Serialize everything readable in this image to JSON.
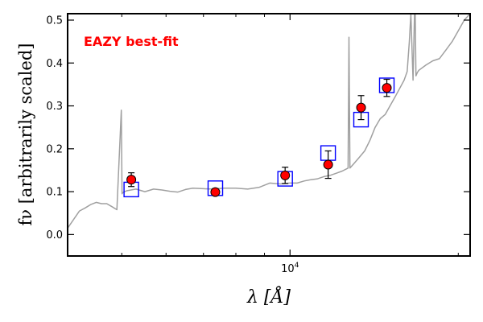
{
  "chart_data": {
    "type": "scatter",
    "title": "",
    "annotation": "EAZY best-fit",
    "xlabel": "λ [Å]",
    "ylabel": "fν [arbitrarily scaled]",
    "xscale": "log",
    "xlim": [
      4000,
      21000
    ],
    "ylim": [
      -0.05,
      0.515
    ],
    "grid": false,
    "y_ticks": [
      {
        "value": 0.0,
        "label": "0.0"
      },
      {
        "value": 0.1,
        "label": "0.1"
      },
      {
        "value": 0.2,
        "label": "0.2"
      },
      {
        "value": 0.3,
        "label": "0.3"
      },
      {
        "value": 0.4,
        "label": "0.4"
      },
      {
        "value": 0.5,
        "label": "0.5"
      }
    ],
    "x_major_ticks": [
      {
        "value": 10000,
        "label": "10^4"
      }
    ],
    "x_minor_ticks": [
      5000,
      6000,
      7000,
      8000,
      9000,
      20000
    ],
    "series": [
      {
        "kind": "template",
        "color": "#a0a0a0",
        "x": [
          4000,
          4100,
          4200,
          4300,
          4400,
          4500,
          4600,
          4700,
          4800,
          4900,
          4990,
          5005,
          5020,
          5100,
          5300,
          5500,
          5700,
          5900,
          6100,
          6300,
          6500,
          6700,
          7000,
          7300,
          7600,
          8000,
          8400,
          8800,
          9200,
          9600,
          10000,
          10300,
          10600,
          10900,
          11200,
          11500,
          11800,
          12100,
          12400,
          12700,
          12750,
          12800,
          13000,
          13300,
          13600,
          13900,
          14200,
          14500,
          14800,
          15100,
          15400,
          15700,
          16000,
          16200,
          16350,
          16450,
          16600,
          16700,
          16750,
          16800,
          16900,
          17000,
          17500,
          18000,
          18500,
          19000,
          19500,
          20000,
          20500,
          21000
        ],
        "y": [
          0.015,
          0.035,
          0.055,
          0.062,
          0.07,
          0.075,
          0.072,
          0.072,
          0.065,
          0.058,
          0.29,
          0.095,
          0.098,
          0.102,
          0.106,
          0.1,
          0.106,
          0.104,
          0.101,
          0.099,
          0.105,
          0.108,
          0.107,
          0.106,
          0.108,
          0.108,
          0.106,
          0.11,
          0.12,
          0.118,
          0.12,
          0.12,
          0.125,
          0.128,
          0.13,
          0.135,
          0.138,
          0.143,
          0.148,
          0.155,
          0.46,
          0.155,
          0.165,
          0.18,
          0.195,
          0.22,
          0.25,
          0.27,
          0.28,
          0.3,
          0.32,
          0.34,
          0.36,
          0.38,
          0.45,
          0.515,
          0.36,
          0.515,
          0.515,
          0.37,
          0.378,
          0.383,
          0.395,
          0.405,
          0.41,
          0.43,
          0.45,
          0.475,
          0.5,
          0.515
        ]
      },
      {
        "kind": "model_photometry",
        "marker": "square",
        "color": "#0000ff",
        "x": [
          5200,
          7350,
          9800,
          11700,
          13400,
          14900
        ],
        "y": [
          0.105,
          0.108,
          0.13,
          0.19,
          0.268,
          0.348
        ]
      },
      {
        "kind": "observed_photometry",
        "marker": "circle",
        "color": "#ff0000",
        "x": [
          5200,
          7350,
          9800,
          11700,
          13400,
          14900
        ],
        "y": [
          0.128,
          0.099,
          0.138,
          0.163,
          0.296,
          0.342
        ],
        "yerr": [
          0.016,
          0.008,
          0.019,
          0.032,
          0.028,
          0.02
        ]
      }
    ]
  }
}
